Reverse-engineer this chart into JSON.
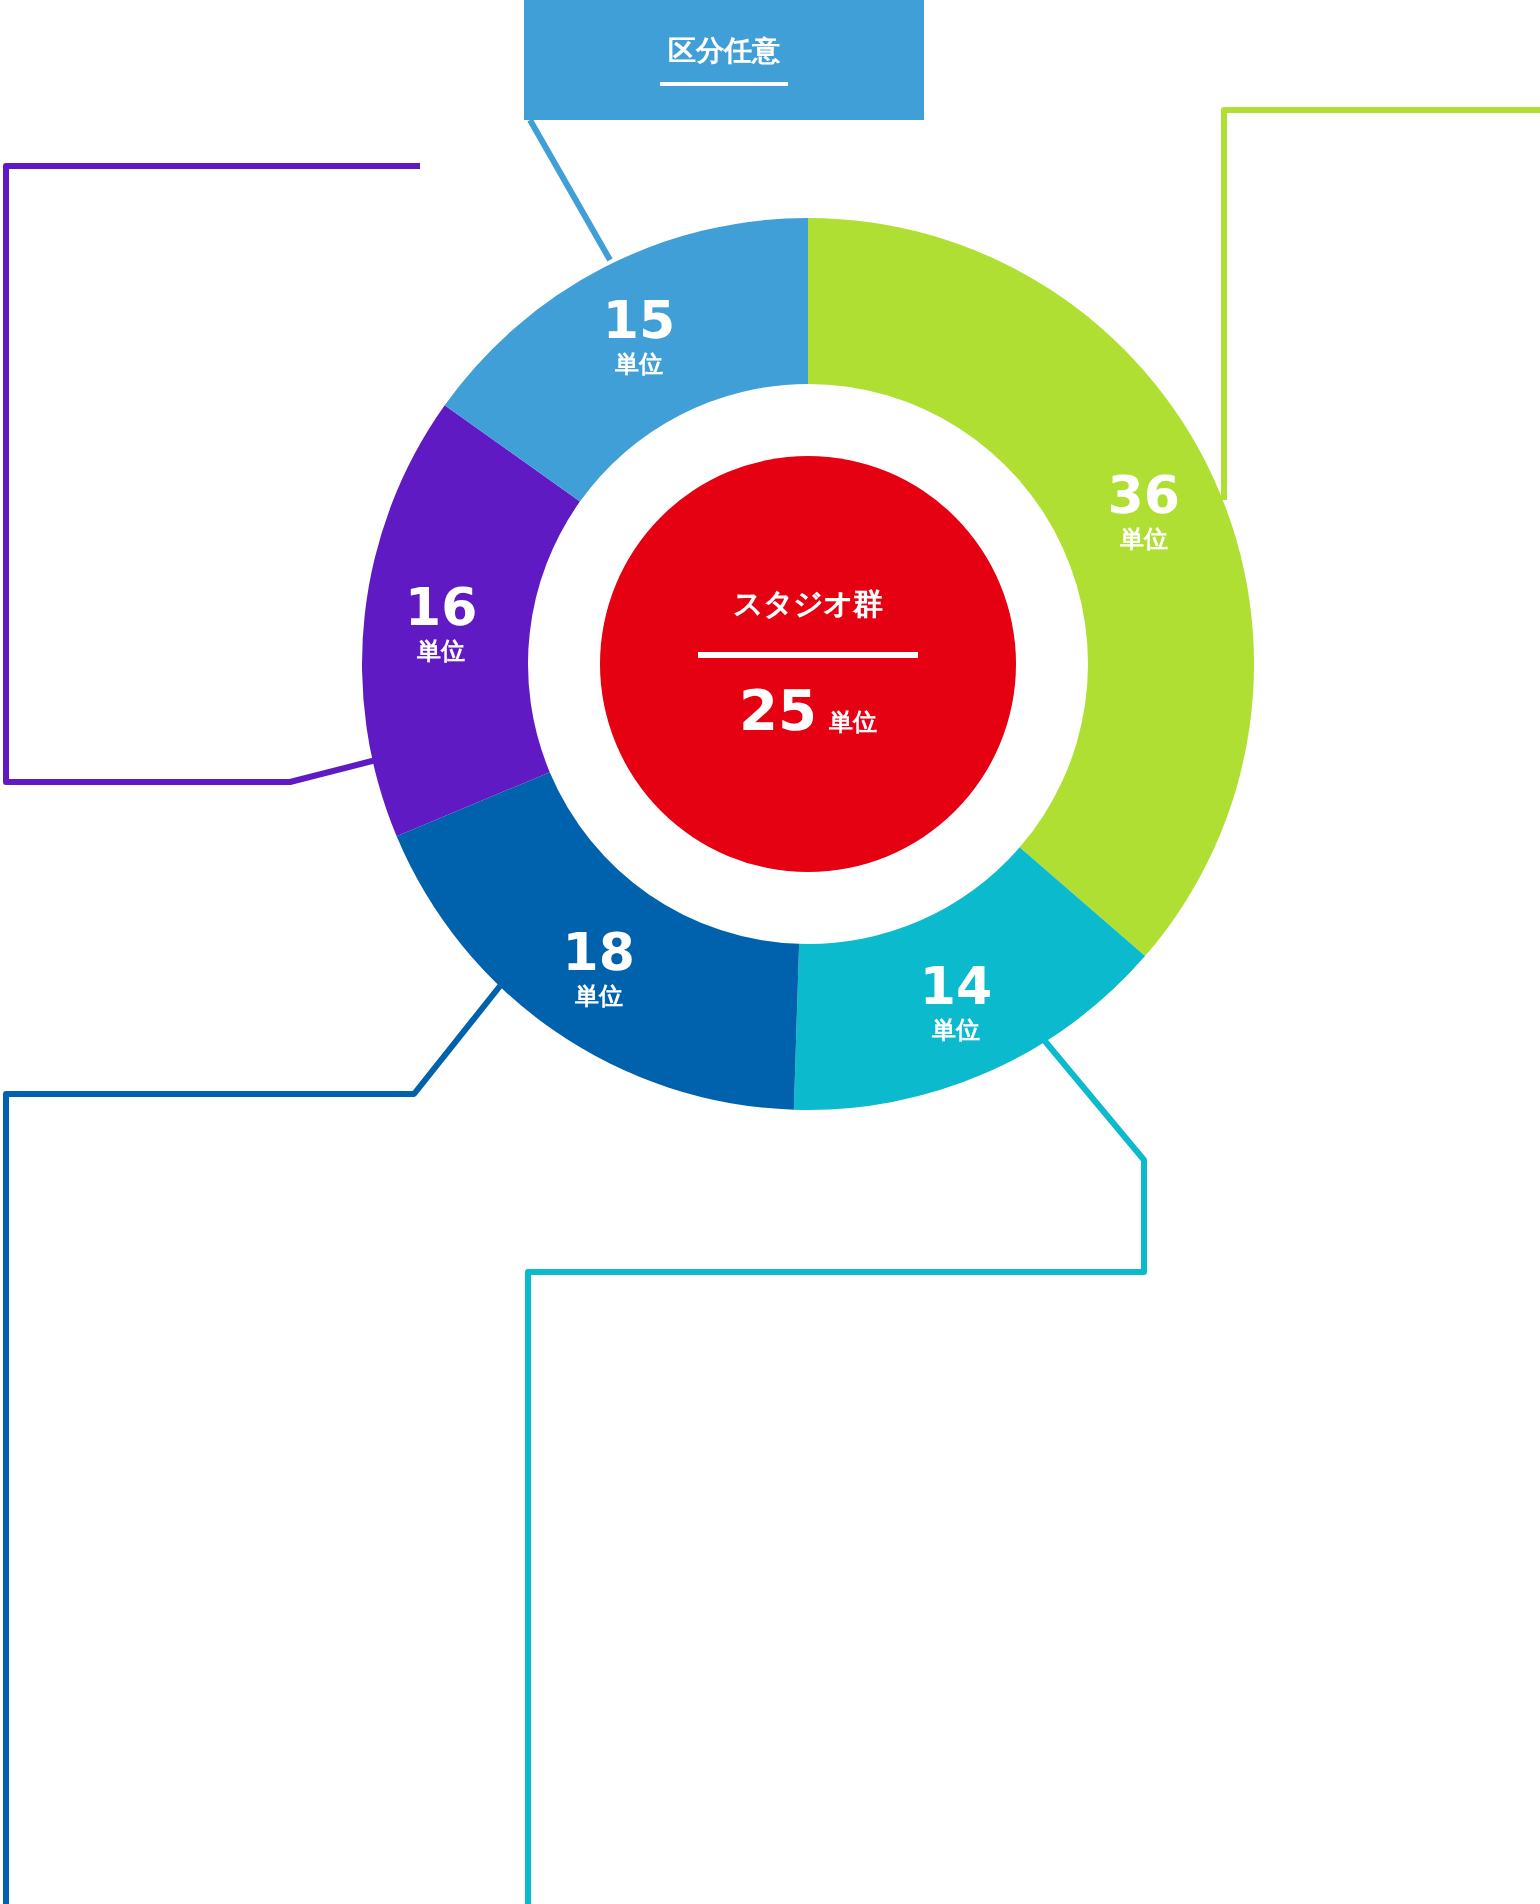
{
  "chart_data": {
    "type": "donut",
    "categories": [
      null,
      null,
      null,
      null,
      null
    ],
    "values": [
      36,
      14,
      18,
      16,
      15
    ],
    "colors": [
      "#aedf32",
      "#0bbacc",
      "#0061ad",
      "#5f1ac4",
      "#3f9fd6"
    ],
    "value_labels": [
      "36 単位",
      "14 単位",
      "18 単位",
      "16 単位",
      "15 単位"
    ],
    "annotations": [
      "区分任意",
      "スタジオ群",
      "25 単位"
    ]
  }
}
